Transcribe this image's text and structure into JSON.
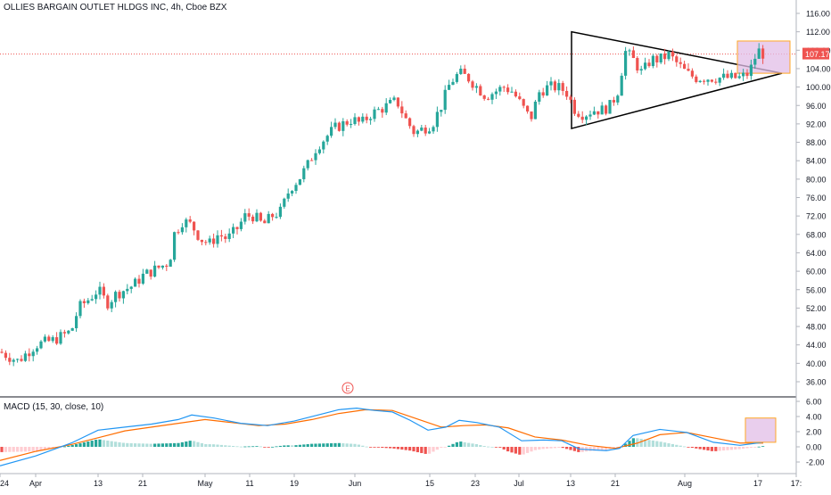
{
  "header": {
    "title": "OLLIES BARGAIN OUTLET HLDGS INC, 4h, Cboe BZX"
  },
  "macd_panel": {
    "title": "MACD (15, 30, close, 10)"
  },
  "earnings_marker": "E",
  "last_price_label": "107.17",
  "colors": {
    "up": "#26a69a",
    "down": "#ef5350",
    "macd_line": "#2196f3",
    "signal_line": "#ff6d00",
    "highlight_fill": "#e1bee7",
    "highlight_border": "#ffa726",
    "price_line": "#ef5350"
  },
  "chart_data": [
    {
      "type": "candlestick",
      "title": "OLLIES BARGAIN OUTLET HLDGS INC, 4h, Cboe BZX",
      "ylim": [
        33,
        118
      ],
      "y_ticks": [
        "116.00",
        "112.00",
        "108.00",
        "104.00",
        "100.00",
        "96.00",
        "92.00",
        "88.00",
        "84.00",
        "80.00",
        "76.00",
        "72.00",
        "68.00",
        "64.00",
        "60.00",
        "56.00",
        "52.00",
        "48.00",
        "44.00",
        "40.00",
        "36.00"
      ],
      "x_ticks": [
        "24",
        "Apr",
        "13",
        "21",
        "May",
        "11",
        "19",
        "Jun",
        "15",
        "23",
        "Jul",
        "13",
        "21",
        "Aug",
        "17",
        "17:"
      ],
      "last_price": 107.17,
      "close_path_points": [
        [
          0,
          42.5
        ],
        [
          20,
          40.5
        ],
        [
          40,
          44
        ],
        [
          60,
          45
        ],
        [
          80,
          47
        ],
        [
          88,
          52
        ],
        [
          100,
          54
        ],
        [
          110,
          56
        ],
        [
          120,
          53
        ],
        [
          130,
          55
        ],
        [
          140,
          56
        ],
        [
          150,
          57
        ],
        [
          160,
          59
        ],
        [
          170,
          60
        ],
        [
          180,
          61
        ],
        [
          190,
          62
        ],
        [
          195,
          68
        ],
        [
          205,
          71
        ],
        [
          215,
          70
        ],
        [
          225,
          67
        ],
        [
          235,
          66
        ],
        [
          245,
          68
        ],
        [
          255,
          67
        ],
        [
          265,
          69
        ],
        [
          275,
          72
        ],
        [
          285,
          72
        ],
        [
          295,
          70
        ],
        [
          305,
          72
        ],
        [
          315,
          73
        ],
        [
          325,
          78
        ],
        [
          335,
          80
        ],
        [
          345,
          83
        ],
        [
          355,
          87
        ],
        [
          365,
          89
        ],
        [
          375,
          91
        ],
        [
          385,
          92
        ],
        [
          395,
          93
        ],
        [
          405,
          92
        ],
        [
          415,
          94
        ],
        [
          425,
          95
        ],
        [
          435,
          96
        ],
        [
          445,
          97
        ],
        [
          455,
          93
        ],
        [
          465,
          90
        ],
        [
          475,
          91
        ],
        [
          485,
          92
        ],
        [
          495,
          96
        ],
        [
          505,
          101
        ],
        [
          515,
          103
        ],
        [
          525,
          102
        ],
        [
          535,
          100
        ],
        [
          545,
          98
        ],
        [
          555,
          99
        ],
        [
          565,
          100
        ],
        [
          575,
          99
        ],
        [
          585,
          96
        ],
        [
          595,
          93
        ],
        [
          605,
          99
        ],
        [
          615,
          100
        ],
        [
          625,
          100
        ],
        [
          635,
          99
        ],
        [
          645,
          95
        ],
        [
          655,
          94
        ],
        [
          665,
          95
        ],
        [
          675,
          95
        ],
        [
          685,
          96
        ],
        [
          695,
          100
        ],
        [
          700,
          108
        ],
        [
          710,
          106
        ],
        [
          720,
          103
        ],
        [
          730,
          106
        ],
        [
          740,
          106
        ],
        [
          750,
          107
        ],
        [
          760,
          105
        ],
        [
          770,
          103
        ],
        [
          780,
          102
        ],
        [
          790,
          102
        ],
        [
          800,
          102
        ],
        [
          810,
          102
        ],
        [
          820,
          102
        ],
        [
          830,
          102
        ],
        [
          840,
          103
        ],
        [
          850,
          108
        ],
        [
          856,
          107.17
        ]
      ],
      "annotations": {
        "triangle": {
          "vertices": [
            [
              641,
              112
            ],
            [
              641,
              91
            ],
            [
              877,
              103
            ]
          ]
        },
        "highlight_box": {
          "x": [
            827,
            886
          ],
          "y": [
            103,
            110
          ]
        }
      }
    },
    {
      "type": "macd",
      "title": "MACD (15, 30, close, 10)",
      "ylim": [
        -3,
        6.5
      ],
      "y_ticks": [
        "6.00",
        "4.00",
        "2.00",
        "0.00",
        "-2.00"
      ],
      "macd_line": [
        [
          0,
          -2.5
        ],
        [
          40,
          -1.2
        ],
        [
          80,
          0.5
        ],
        [
          110,
          2.2
        ],
        [
          140,
          2.6
        ],
        [
          170,
          3
        ],
        [
          200,
          3.6
        ],
        [
          215,
          4.2
        ],
        [
          240,
          3.8
        ],
        [
          270,
          3.1
        ],
        [
          300,
          2.8
        ],
        [
          330,
          3.4
        ],
        [
          360,
          4.3
        ],
        [
          380,
          4.9
        ],
        [
          400,
          5.1
        ],
        [
          420,
          4.8
        ],
        [
          440,
          4.6
        ],
        [
          460,
          3.5
        ],
        [
          480,
          2.2
        ],
        [
          500,
          2.6
        ],
        [
          515,
          3.5
        ],
        [
          535,
          3.2
        ],
        [
          560,
          2.6
        ],
        [
          585,
          0.8
        ],
        [
          610,
          0.9
        ],
        [
          630,
          0.8
        ],
        [
          650,
          -0.3
        ],
        [
          680,
          -0.5
        ],
        [
          695,
          -0.2
        ],
        [
          710,
          1.5
        ],
        [
          740,
          2.3
        ],
        [
          770,
          1.9
        ],
        [
          800,
          0.6
        ],
        [
          830,
          0.2
        ],
        [
          856,
          0.6
        ]
      ],
      "signal_line": [
        [
          0,
          -1.8
        ],
        [
          40,
          -0.6
        ],
        [
          80,
          0.3
        ],
        [
          110,
          1.2
        ],
        [
          140,
          2.1
        ],
        [
          170,
          2.6
        ],
        [
          200,
          3.1
        ],
        [
          230,
          3.6
        ],
        [
          260,
          3.2
        ],
        [
          290,
          2.8
        ],
        [
          320,
          3.0
        ],
        [
          350,
          3.6
        ],
        [
          380,
          4.4
        ],
        [
          410,
          4.9
        ],
        [
          440,
          4.8
        ],
        [
          470,
          3.6
        ],
        [
          495,
          2.6
        ],
        [
          520,
          2.8
        ],
        [
          545,
          2.9
        ],
        [
          570,
          2.5
        ],
        [
          600,
          1.3
        ],
        [
          630,
          0.9
        ],
        [
          660,
          0.2
        ],
        [
          690,
          -0.2
        ],
        [
          715,
          0.5
        ],
        [
          740,
          1.6
        ],
        [
          770,
          1.9
        ],
        [
          800,
          1.2
        ],
        [
          830,
          0.5
        ],
        [
          856,
          0.5
        ]
      ],
      "highlight_box": {
        "x": [
          836,
          870
        ],
        "y": [
          0.6,
          3.8
        ]
      }
    }
  ]
}
